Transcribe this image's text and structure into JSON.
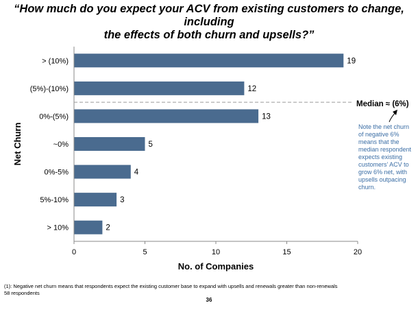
{
  "title": {
    "line1": "“How much do you expect your ACV from existing customers  to change, including",
    "line2": "the effects of both churn and upsells?”"
  },
  "chart_data": {
    "type": "bar",
    "orientation": "horizontal",
    "categories": [
      "> (10%)",
      "(5%)-(10%)",
      "0%-(5%)",
      "~0%",
      "0%-5%",
      "5%-10%",
      "> 10%"
    ],
    "values": [
      19,
      12,
      13,
      5,
      4,
      3,
      2
    ],
    "xlabel": "No. of Companies",
    "ylabel": "Net Churn",
    "xlim": [
      0,
      20
    ],
    "xticks": [
      "0",
      "5",
      "10",
      "15",
      "20"
    ],
    "bar_color": "#4A6B8F",
    "median_line": {
      "label": "Median  ≈ (6%)",
      "between": [
        "(5%)-(10%)",
        "0%-(5%)"
      ]
    },
    "annotation": "Note the net churn of negative 6% means that the median respondent expects existing customers’ ACV to grow 6% net, with upsells outpacing churn."
  },
  "footnote": {
    "line1": "(1): Negative net churn means that respondents expect the existing customer base to expand with upsells and renewals greater than non-renewals",
    "line2": "58 respondents"
  },
  "page_number": "36",
  "colors": {
    "bar": "#4A6B8F",
    "note": "#3B6EA5",
    "median_line": "#999999"
  }
}
